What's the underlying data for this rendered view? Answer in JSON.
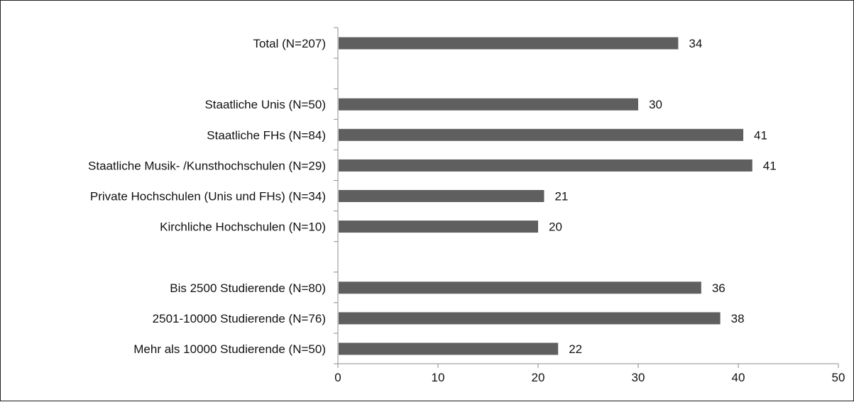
{
  "chart_data": {
    "type": "bar",
    "orientation": "horizontal",
    "title": "",
    "xlabel": "",
    "ylabel": "",
    "xlim": [
      0,
      50
    ],
    "xticks": [
      0,
      10,
      20,
      30,
      40,
      50
    ],
    "grid": false,
    "legend": "none",
    "bar_color": "#5f5f5f",
    "rows": [
      {
        "label": "Total (N=207)",
        "value": 34,
        "value_label": "34"
      },
      {
        "label": "",
        "value": null,
        "value_label": ""
      },
      {
        "label": "Staatliche Unis (N=50)",
        "value": 30,
        "value_label": "30"
      },
      {
        "label": "Staatliche FHs (N=84)",
        "value": 40.5,
        "value_label": "41"
      },
      {
        "label": "Staatliche Musik- /Kunsthochschulen (N=29)",
        "value": 41.4,
        "value_label": "41"
      },
      {
        "label": "Private Hochschulen (Unis und FHs) (N=34)",
        "value": 20.6,
        "value_label": "21"
      },
      {
        "label": "Kirchliche Hochschulen (N=10)",
        "value": 20,
        "value_label": "20"
      },
      {
        "label": "",
        "value": null,
        "value_label": ""
      },
      {
        "label": "Bis 2500 Studierende (N=80)",
        "value": 36.3,
        "value_label": "36"
      },
      {
        "label": "2501-10000 Studierende (N=76)",
        "value": 38.2,
        "value_label": "38"
      },
      {
        "label": "Mehr als 10000 Studierende (N=50)",
        "value": 22,
        "value_label": "22"
      }
    ]
  }
}
